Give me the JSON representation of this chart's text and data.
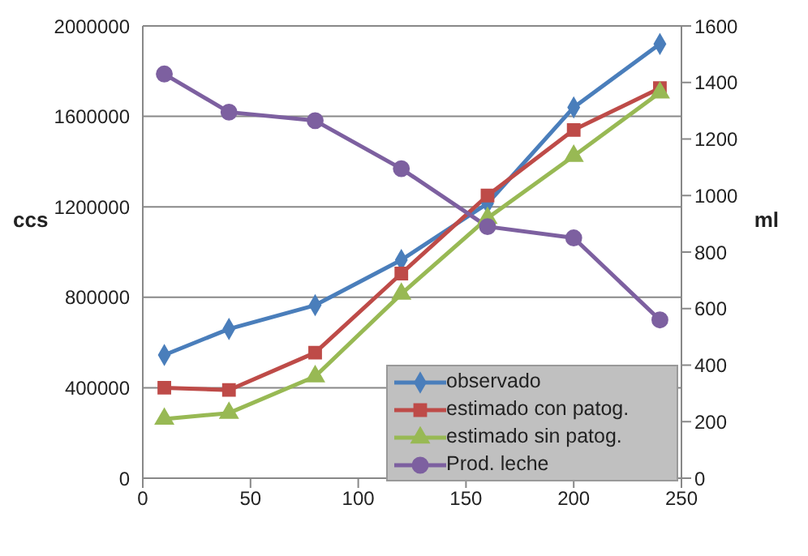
{
  "chart_data": {
    "type": "line",
    "x": [
      10,
      40,
      80,
      120,
      160,
      200,
      240
    ],
    "series": [
      {
        "name": "observado",
        "color": "#4a7ebb",
        "marker": "diamond",
        "values": [
          545000,
          660000,
          765000,
          965000,
          1215000,
          1640000,
          1920000
        ]
      },
      {
        "name": "estimado con patog.",
        "color": "#be4b48",
        "marker": "square",
        "values": [
          400000,
          390000,
          555000,
          905000,
          1250000,
          1540000,
          1725000
        ]
      },
      {
        "name": "estimado sin patog.",
        "color": "#98b954",
        "marker": "triangle",
        "values": [
          262000,
          288000,
          450000,
          815000,
          1150000,
          1425000,
          1705000
        ]
      },
      {
        "name": "Prod. leche",
        "color": "#7d60a0",
        "marker": "circle",
        "axis": "y2",
        "values": [
          1430,
          1295,
          1265,
          1095,
          890,
          850,
          560
        ]
      }
    ],
    "ylabel": "ccs",
    "y2label": "ml",
    "xlim": [
      0,
      250
    ],
    "xticks": [
      0,
      50,
      100,
      150,
      200,
      250
    ],
    "ylim": [
      0,
      2000000
    ],
    "yticks": [
      0,
      400000,
      800000,
      1200000,
      1600000,
      2000000
    ],
    "y2lim": [
      0,
      1600
    ],
    "y2ticks": [
      0,
      200,
      400,
      600,
      800,
      1000,
      1200,
      1400,
      1600
    ],
    "grid": "y",
    "legend": "bottom right"
  }
}
